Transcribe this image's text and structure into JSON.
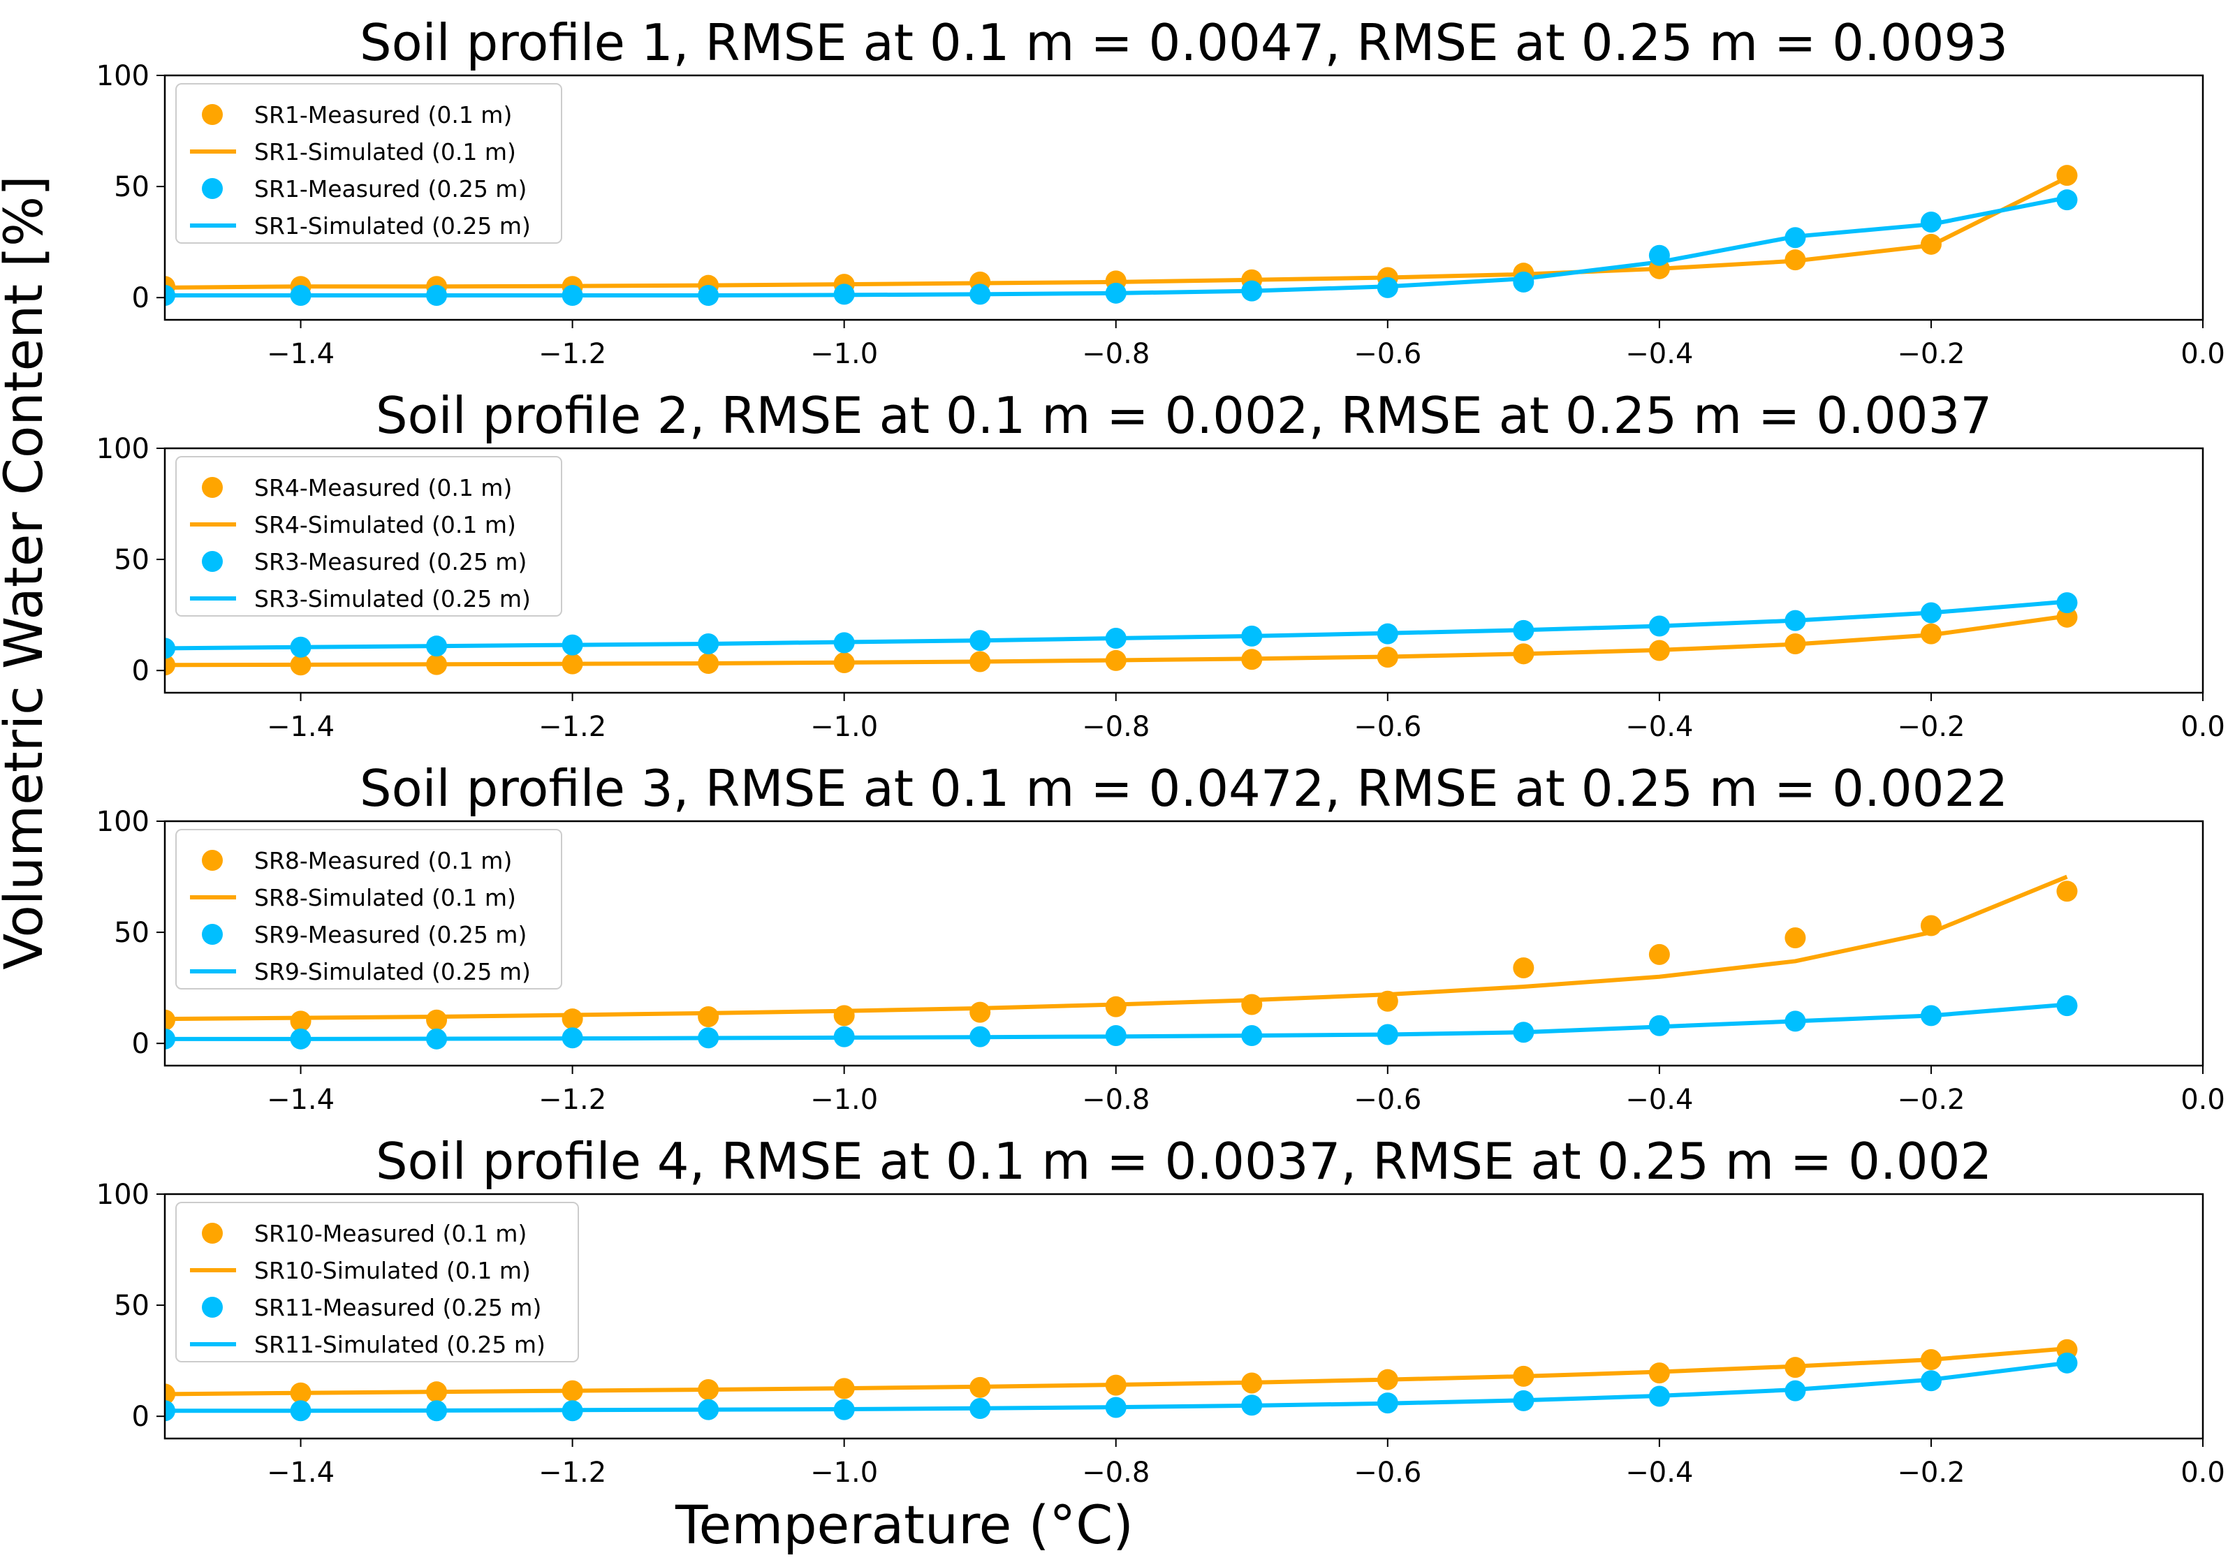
{
  "figure": {
    "ylabel": "Volumetric Water Content [%]",
    "xlabel": "Temperature (°C)"
  },
  "colors": {
    "orange": "#FFA500",
    "blue": "#00BFFF",
    "axis": "#000000",
    "legend_border": "#cccccc"
  },
  "chart_data": [
    {
      "type": "line",
      "title": "Soil profile 1, RMSE at 0.1 m = 0.0047, RMSE at 0.25 m = 0.0093",
      "xlim": [
        -1.5,
        0.0
      ],
      "ylim": [
        -10,
        100
      ],
      "x_ticks": [
        -1.4,
        -1.2,
        -1.0,
        -0.8,
        -0.6,
        -0.4,
        -0.2,
        0.0
      ],
      "x_tick_labels": [
        "−1.4",
        "−1.2",
        "−1.0",
        "−0.8",
        "−0.6",
        "−0.4",
        "−0.2",
        "0.0"
      ],
      "y_ticks": [
        0,
        50,
        100
      ],
      "y_tick_labels": [
        "0",
        "50",
        "100"
      ],
      "x_measured": [
        -1.5,
        -1.4,
        -1.3,
        -1.2,
        -1.1,
        -1.0,
        -0.9,
        -0.8,
        -0.7,
        -0.6,
        -0.5,
        -0.4,
        -0.3,
        -0.2,
        -0.1
      ],
      "x_simulated": [
        -1.5,
        -1.4,
        -1.3,
        -1.2,
        -1.1,
        -1.0,
        -0.9,
        -0.8,
        -0.7,
        -0.6,
        -0.5,
        -0.4,
        -0.3,
        -0.2,
        -0.1
      ],
      "series": [
        {
          "name": "SR1-Measured (0.1 m)",
          "kind": "scatter",
          "color": "orange",
          "values": [
            5,
            5,
            5,
            5,
            5.5,
            6,
            7,
            7.5,
            8,
            9,
            11,
            13,
            17,
            24,
            55
          ]
        },
        {
          "name": "SR1-Simulated (0.1 m)",
          "kind": "line",
          "color": "orange",
          "values": [
            4.5,
            5,
            5,
            5.2,
            5.5,
            6,
            6.5,
            7,
            8,
            9,
            10.5,
            13,
            16.5,
            23.5,
            54
          ]
        },
        {
          "name": "SR1-Measured (0.25 m)",
          "kind": "scatter",
          "color": "blue",
          "values": [
            1,
            1,
            1,
            1,
            1,
            1.5,
            1.5,
            2,
            3,
            4.5,
            7,
            19,
            27,
            34,
            44
          ]
        },
        {
          "name": "SR1-Simulated (0.25 m)",
          "kind": "line",
          "color": "blue",
          "values": [
            1,
            1,
            1,
            1,
            1,
            1.2,
            1.5,
            2,
            3,
            5,
            8.5,
            16,
            27.5,
            33,
            45
          ]
        }
      ]
    },
    {
      "type": "line",
      "title": "Soil profile 2, RMSE at 0.1 m = 0.002, RMSE at 0.25 m = 0.0037",
      "xlim": [
        -1.5,
        0.0
      ],
      "ylim": [
        -10,
        100
      ],
      "x_ticks": [
        -1.4,
        -1.2,
        -1.0,
        -0.8,
        -0.6,
        -0.4,
        -0.2,
        0.0
      ],
      "x_tick_labels": [
        "−1.4",
        "−1.2",
        "−1.0",
        "−0.8",
        "−0.6",
        "−0.4",
        "−0.2",
        "0.0"
      ],
      "y_ticks": [
        0,
        50,
        100
      ],
      "y_tick_labels": [
        "0",
        "50",
        "100"
      ],
      "x_measured": [
        -1.5,
        -1.4,
        -1.3,
        -1.2,
        -1.1,
        -1.0,
        -0.9,
        -0.8,
        -0.7,
        -0.6,
        -0.5,
        -0.4,
        -0.3,
        -0.2,
        -0.1
      ],
      "x_simulated": [
        -1.5,
        -1.4,
        -1.3,
        -1.2,
        -1.1,
        -1.0,
        -0.9,
        -0.8,
        -0.7,
        -0.6,
        -0.5,
        -0.4,
        -0.3,
        -0.2,
        -0.1
      ],
      "series": [
        {
          "name": "SR4-Measured (0.1 m)",
          "kind": "scatter",
          "color": "orange",
          "values": [
            2.5,
            2.5,
            2.7,
            3,
            3.2,
            3.5,
            4,
            4.5,
            5,
            6,
            7.5,
            9,
            12,
            16.5,
            24
          ]
        },
        {
          "name": "SR4-Simulated (0.1 m)",
          "kind": "line",
          "color": "orange",
          "values": [
            2.5,
            2.6,
            2.8,
            3,
            3.2,
            3.6,
            4,
            4.6,
            5.3,
            6.2,
            7.5,
            9.2,
            11.8,
            16,
            24.5
          ]
        },
        {
          "name": "SR3-Measured (0.25 m)",
          "kind": "scatter",
          "color": "blue",
          "values": [
            10,
            10.5,
            11,
            11.5,
            12,
            12.5,
            13.5,
            14.5,
            15.5,
            16.5,
            18,
            20,
            22.5,
            26,
            30.5
          ]
        },
        {
          "name": "SR3-Simulated (0.25 m)",
          "kind": "line",
          "color": "blue",
          "values": [
            10,
            10.5,
            11,
            11.5,
            12,
            12.8,
            13.5,
            14.5,
            15.5,
            16.8,
            18.2,
            20,
            22.5,
            26,
            31
          ]
        }
      ]
    },
    {
      "type": "line",
      "title": "Soil profile 3, RMSE at 0.1 m = 0.0472, RMSE at 0.25 m = 0.0022",
      "xlim": [
        -1.5,
        0.0
      ],
      "ylim": [
        -10,
        100
      ],
      "x_ticks": [
        -1.4,
        -1.2,
        -1.0,
        -0.8,
        -0.6,
        -0.4,
        -0.2,
        0.0
      ],
      "x_tick_labels": [
        "−1.4",
        "−1.2",
        "−1.0",
        "−0.8",
        "−0.6",
        "−0.4",
        "−0.2",
        "0.0"
      ],
      "y_ticks": [
        0,
        50,
        100
      ],
      "y_tick_labels": [
        "0",
        "50",
        "100"
      ],
      "x_measured": [
        -1.5,
        -1.4,
        -1.3,
        -1.2,
        -1.1,
        -1.0,
        -0.9,
        -0.8,
        -0.7,
        -0.6,
        -0.5,
        -0.4,
        -0.3,
        -0.2,
        -0.1
      ],
      "x_simulated": [
        -1.5,
        -1.4,
        -1.3,
        -1.2,
        -1.1,
        -1.0,
        -0.9,
        -0.8,
        -0.7,
        -0.6,
        -0.5,
        -0.4,
        -0.3,
        -0.2,
        -0.1
      ],
      "series": [
        {
          "name": "SR8-Measured (0.1 m)",
          "kind": "scatter",
          "color": "orange",
          "values": [
            10.5,
            10,
            10.5,
            11,
            12,
            12.5,
            14,
            16.5,
            17.5,
            19,
            34,
            40,
            47.5,
            53,
            68.5
          ]
        },
        {
          "name": "SR8-Simulated (0.1 m)",
          "kind": "line",
          "color": "orange",
          "values": [
            11,
            11.5,
            12,
            12.8,
            13.6,
            14.6,
            15.8,
            17.5,
            19.5,
            22,
            25.5,
            30,
            37,
            50,
            75
          ]
        },
        {
          "name": "SR9-Measured (0.25 m)",
          "kind": "scatter",
          "color": "blue",
          "values": [
            2,
            2,
            2,
            2.5,
            2.5,
            3,
            3,
            3.5,
            3.5,
            4,
            5,
            8,
            10,
            12.5,
            17
          ]
        },
        {
          "name": "SR9-Simulated (0.25 m)",
          "kind": "line",
          "color": "blue",
          "values": [
            2,
            2,
            2.1,
            2.2,
            2.4,
            2.6,
            2.8,
            3.1,
            3.5,
            4,
            5,
            7.5,
            10,
            12.5,
            17.5
          ]
        }
      ]
    },
    {
      "type": "line",
      "title": "Soil profile 4, RMSE at 0.1 m = 0.0037, RMSE at 0.25 m = 0.002",
      "xlim": [
        -1.5,
        0.0
      ],
      "ylim": [
        -10,
        100
      ],
      "x_ticks": [
        -1.4,
        -1.2,
        -1.0,
        -0.8,
        -0.6,
        -0.4,
        -0.2,
        0.0
      ],
      "x_tick_labels": [
        "−1.4",
        "−1.2",
        "−1.0",
        "−0.8",
        "−0.6",
        "−0.4",
        "−0.2",
        "0.0"
      ],
      "y_ticks": [
        0,
        50,
        100
      ],
      "y_tick_labels": [
        "0",
        "50",
        "100"
      ],
      "x_measured": [
        -1.5,
        -1.4,
        -1.3,
        -1.2,
        -1.1,
        -1.0,
        -0.9,
        -0.8,
        -0.7,
        -0.6,
        -0.5,
        -0.4,
        -0.3,
        -0.2,
        -0.1
      ],
      "x_simulated": [
        -1.5,
        -1.4,
        -1.3,
        -1.2,
        -1.1,
        -1.0,
        -0.9,
        -0.8,
        -0.7,
        -0.6,
        -0.5,
        -0.4,
        -0.3,
        -0.2,
        -0.1
      ],
      "series": [
        {
          "name": "SR10-Measured (0.1 m)",
          "kind": "scatter",
          "color": "orange",
          "values": [
            10,
            10.5,
            11,
            11.5,
            12,
            12.5,
            13,
            14,
            15,
            16.5,
            18,
            19.5,
            22,
            25.5,
            30
          ]
        },
        {
          "name": "SR10-Simulated (0.1 m)",
          "kind": "line",
          "color": "orange",
          "values": [
            10,
            10.5,
            11,
            11.5,
            12,
            12.6,
            13.3,
            14.2,
            15.2,
            16.5,
            18,
            20,
            22.5,
            25.5,
            30.5
          ]
        },
        {
          "name": "SR11-Measured (0.25 m)",
          "kind": "scatter",
          "color": "blue",
          "values": [
            2.5,
            2.5,
            2.5,
            2.5,
            3,
            3,
            3.5,
            4,
            5,
            6,
            7,
            9,
            11.5,
            16,
            24
          ]
        },
        {
          "name": "SR11-Simulated (0.25 m)",
          "kind": "line",
          "color": "blue",
          "values": [
            2.5,
            2.5,
            2.6,
            2.8,
            3,
            3.2,
            3.6,
            4.1,
            4.8,
            5.8,
            7.2,
            9.2,
            12,
            16.5,
            24
          ]
        }
      ]
    }
  ]
}
